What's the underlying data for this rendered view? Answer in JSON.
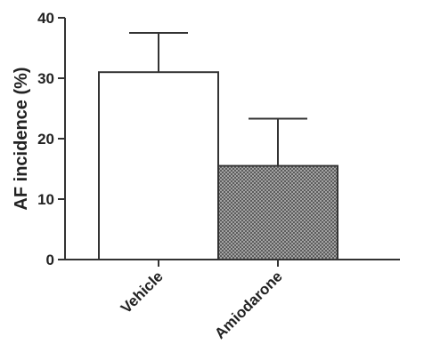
{
  "chart_data": {
    "type": "bar",
    "title": "",
    "xlabel": "",
    "ylabel": "AF incidence (%)",
    "ylim": [
      0,
      40
    ],
    "yticks": [
      0,
      10,
      20,
      30,
      40
    ],
    "grid": false,
    "categories": [
      "Vehicle",
      "Amiodarone"
    ],
    "values": [
      31,
      15.5
    ],
    "error_upper": [
      37.5,
      23.3
    ],
    "bar_fills": [
      "white",
      "crosshatch"
    ],
    "colors": {
      "axis": "#333333",
      "bar_stroke": "#333333",
      "hatch_bg": "#bdbdbd",
      "hatch_fg": "#555555"
    }
  }
}
